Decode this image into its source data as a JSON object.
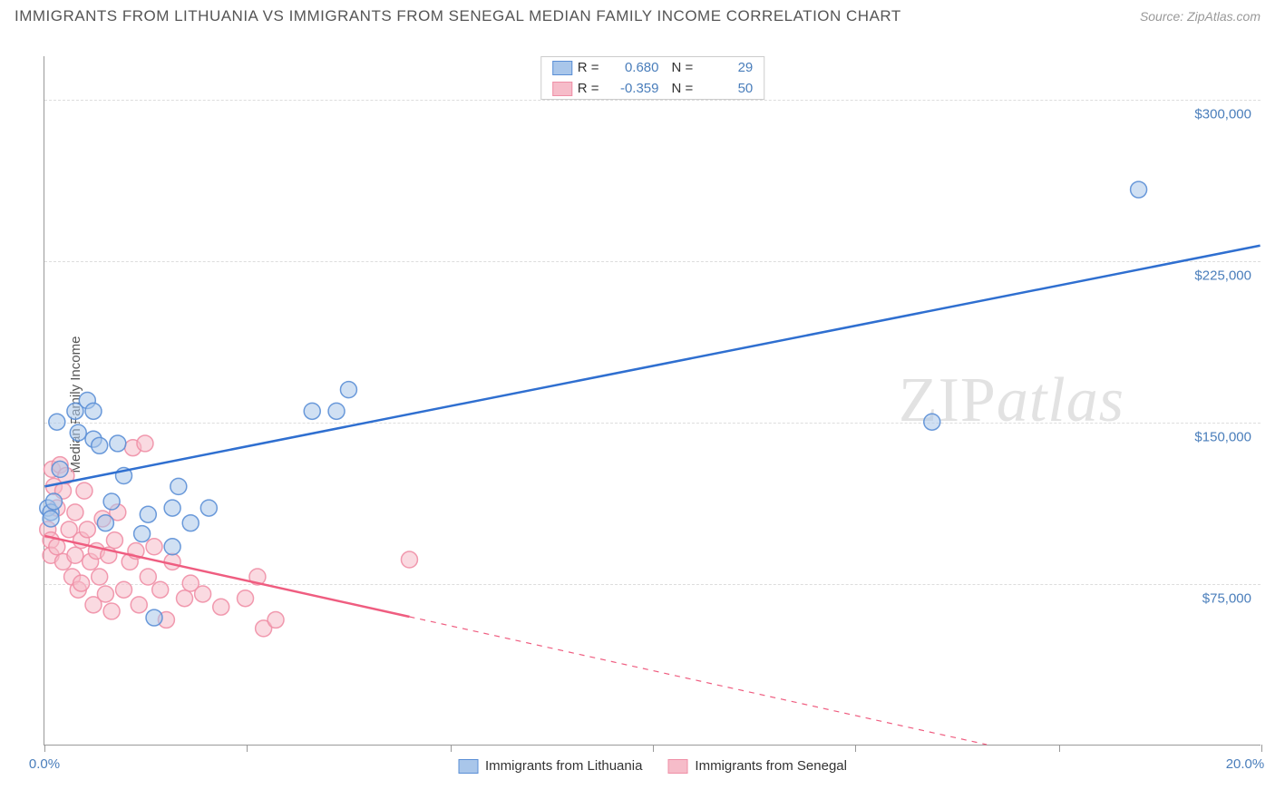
{
  "title": "IMMIGRANTS FROM LITHUANIA VS IMMIGRANTS FROM SENEGAL MEDIAN FAMILY INCOME CORRELATION CHART",
  "source": "Source: ZipAtlas.com",
  "ylabel": "Median Family Income",
  "watermark_zip": "ZIP",
  "watermark_atlas": "atlas",
  "chart": {
    "type": "scatter",
    "xlim": [
      0,
      20
    ],
    "ylim": [
      0,
      320000
    ],
    "x_unit": "%",
    "xticks_labels": {
      "left": "0.0%",
      "right": "20.0%"
    },
    "xticks_minor": [
      0,
      3.33,
      6.67,
      10,
      13.33,
      16.67,
      20
    ],
    "yticks": [
      75000,
      150000,
      225000,
      300000
    ],
    "ytick_labels": [
      "$75,000",
      "$150,000",
      "$225,000",
      "$300,000"
    ],
    "grid_color": "#dddddd",
    "axis_color": "#999999",
    "background": "#ffffff",
    "point_radius": 9,
    "point_opacity": 0.55,
    "point_stroke_opacity": 0.9,
    "series": [
      {
        "name": "Immigrants from Lithuania",
        "color_fill": "#a9c6ea",
        "color_stroke": "#5b8fd6",
        "line_color": "#2f6fd0",
        "line_width": 2.5,
        "R": "0.680",
        "N": "29",
        "trend": {
          "x1": 0,
          "y1": 120000,
          "x2": 20,
          "y2": 232000,
          "dashed": false,
          "solid_until_x": 20
        },
        "points": [
          [
            0.05,
            110000
          ],
          [
            0.1,
            108000
          ],
          [
            0.15,
            113000
          ],
          [
            0.1,
            105000
          ],
          [
            0.2,
            150000
          ],
          [
            0.25,
            128000
          ],
          [
            0.55,
            145000
          ],
          [
            0.5,
            155000
          ],
          [
            0.7,
            160000
          ],
          [
            0.8,
            142000
          ],
          [
            0.8,
            155000
          ],
          [
            0.9,
            139000
          ],
          [
            1.0,
            103000
          ],
          [
            1.1,
            113000
          ],
          [
            1.2,
            140000
          ],
          [
            1.3,
            125000
          ],
          [
            1.6,
            98000
          ],
          [
            1.7,
            107000
          ],
          [
            1.8,
            59000
          ],
          [
            2.1,
            110000
          ],
          [
            2.1,
            92000
          ],
          [
            2.2,
            120000
          ],
          [
            2.4,
            103000
          ],
          [
            2.7,
            110000
          ],
          [
            4.4,
            155000
          ],
          [
            4.8,
            155000
          ],
          [
            5.0,
            165000
          ],
          [
            14.6,
            150000
          ],
          [
            18.0,
            258000
          ]
        ]
      },
      {
        "name": "Immigrants from Senegal",
        "color_fill": "#f6bcc9",
        "color_stroke": "#ef8fa6",
        "line_color": "#ef5d80",
        "line_width": 2.5,
        "R": "-0.359",
        "N": "50",
        "trend": {
          "x1": 0,
          "y1": 97000,
          "x2": 15.5,
          "y2": 0,
          "dashed": true,
          "solid_until_x": 6
        },
        "points": [
          [
            0.05,
            100000
          ],
          [
            0.1,
            95000
          ],
          [
            0.1,
            88000
          ],
          [
            0.12,
            128000
          ],
          [
            0.15,
            120000
          ],
          [
            0.2,
            110000
          ],
          [
            0.2,
            92000
          ],
          [
            0.25,
            130000
          ],
          [
            0.3,
            118000
          ],
          [
            0.3,
            85000
          ],
          [
            0.35,
            125000
          ],
          [
            0.4,
            100000
          ],
          [
            0.45,
            78000
          ],
          [
            0.5,
            88000
          ],
          [
            0.5,
            108000
          ],
          [
            0.55,
            72000
          ],
          [
            0.6,
            95000
          ],
          [
            0.6,
            75000
          ],
          [
            0.65,
            118000
          ],
          [
            0.7,
            100000
          ],
          [
            0.75,
            85000
          ],
          [
            0.8,
            65000
          ],
          [
            0.85,
            90000
          ],
          [
            0.9,
            78000
          ],
          [
            0.95,
            105000
          ],
          [
            1.0,
            70000
          ],
          [
            1.05,
            88000
          ],
          [
            1.1,
            62000
          ],
          [
            1.15,
            95000
          ],
          [
            1.2,
            108000
          ],
          [
            1.3,
            72000
          ],
          [
            1.4,
            85000
          ],
          [
            1.45,
            138000
          ],
          [
            1.5,
            90000
          ],
          [
            1.55,
            65000
          ],
          [
            1.65,
            140000
          ],
          [
            1.7,
            78000
          ],
          [
            1.8,
            92000
          ],
          [
            1.9,
            72000
          ],
          [
            2.0,
            58000
          ],
          [
            2.1,
            85000
          ],
          [
            2.3,
            68000
          ],
          [
            2.4,
            75000
          ],
          [
            2.6,
            70000
          ],
          [
            2.9,
            64000
          ],
          [
            3.3,
            68000
          ],
          [
            3.5,
            78000
          ],
          [
            3.6,
            54000
          ],
          [
            3.8,
            58000
          ],
          [
            6.0,
            86000
          ]
        ]
      }
    ]
  },
  "legend_bottom": [
    {
      "label": "Immigrants from Lithuania",
      "fill": "#a9c6ea",
      "stroke": "#5b8fd6"
    },
    {
      "label": "Immigrants from Senegal",
      "fill": "#f6bcc9",
      "stroke": "#ef8fa6"
    }
  ]
}
